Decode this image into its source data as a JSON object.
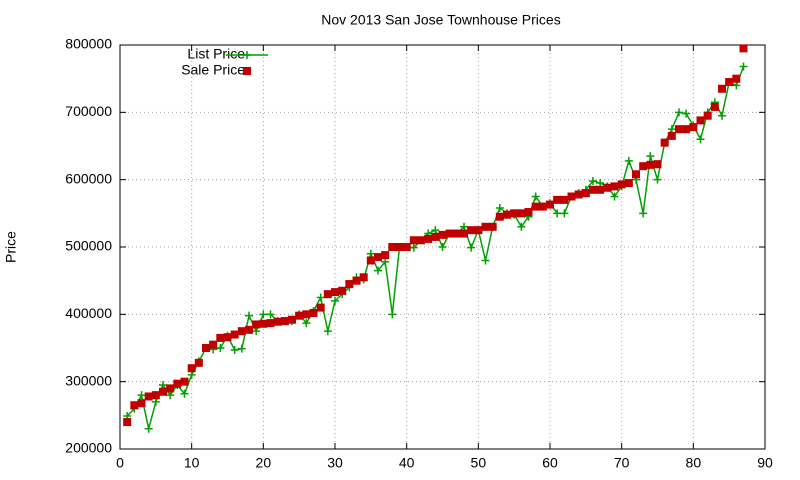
{
  "chart_data": {
    "type": "line",
    "title": "Nov 2013 San Jose Townhouse Prices",
    "y_label": "Price",
    "x": [
      1,
      2,
      3,
      4,
      5,
      6,
      7,
      8,
      9,
      10,
      11,
      12,
      13,
      14,
      15,
      16,
      17,
      18,
      19,
      20,
      21,
      22,
      23,
      24,
      25,
      26,
      27,
      28,
      29,
      30,
      31,
      32,
      33,
      34,
      35,
      36,
      37,
      38,
      39,
      40,
      41,
      42,
      43,
      44,
      45,
      46,
      47,
      48,
      49,
      50,
      51,
      52,
      53,
      54,
      55,
      56,
      57,
      58,
      59,
      60,
      61,
      62,
      63,
      64,
      65,
      66,
      67,
      68,
      69,
      70,
      71,
      72,
      73,
      74,
      75,
      76,
      77,
      78,
      79,
      80,
      81,
      82,
      83,
      84,
      85,
      86,
      87
    ],
    "series": [
      {
        "name": "List Price",
        "color": "#00a000",
        "style": "linespoints",
        "values": [
          249000,
          260000,
          280000,
          230000,
          270000,
          295000,
          280000,
          295000,
          282000,
          310000,
          330000,
          350000,
          348000,
          350000,
          368000,
          347000,
          349000,
          398000,
          375000,
          400000,
          400000,
          390000,
          390000,
          390000,
          400000,
          387000,
          405000,
          425000,
          375000,
          420000,
          430000,
          440000,
          455000,
          452000,
          490000,
          465000,
          478000,
          400000,
          500000,
          500000,
          499000,
          510000,
          520000,
          525000,
          500000,
          520000,
          520000,
          530000,
          499000,
          525000,
          480000,
          530000,
          558000,
          550000,
          548000,
          530000,
          545000,
          575000,
          560000,
          565000,
          550000,
          550000,
          575000,
          580000,
          585000,
          598000,
          595000,
          590000,
          575000,
          590000,
          628000,
          600000,
          550000,
          635000,
          600000,
          655000,
          675000,
          700000,
          698000,
          680000,
          660000,
          700000,
          715000,
          695000,
          745000,
          740000,
          768000
        ]
      },
      {
        "name": "Sale Price",
        "color": "#c00000",
        "style": "points",
        "values": [
          240000,
          265000,
          268000,
          278000,
          280000,
          285000,
          290000,
          297000,
          300000,
          320000,
          328000,
          350000,
          355000,
          365000,
          366000,
          370000,
          375000,
          377000,
          385000,
          386000,
          387000,
          389000,
          390000,
          392000,
          398000,
          400000,
          402000,
          410000,
          430000,
          433000,
          435000,
          445000,
          450000,
          455000,
          480000,
          485000,
          488000,
          500000,
          500000,
          500000,
          510000,
          510000,
          512000,
          515000,
          518000,
          520000,
          520000,
          520000,
          525000,
          525000,
          530000,
          530000,
          545000,
          548000,
          550000,
          550000,
          552000,
          560000,
          560000,
          563000,
          570000,
          570000,
          575000,
          578000,
          580000,
          585000,
          585000,
          588000,
          590000,
          593000,
          595000,
          608000,
          620000,
          622000,
          623000,
          655000,
          665000,
          675000,
          675000,
          678000,
          688000,
          695000,
          708000,
          735000,
          745000,
          750000,
          795000
        ]
      }
    ],
    "xlim": [
      0,
      90
    ],
    "xticks": [
      0,
      10,
      20,
      30,
      40,
      50,
      60,
      70,
      80,
      90
    ],
    "ylim": [
      200000,
      800000
    ],
    "yticks": [
      200000,
      300000,
      400000,
      500000,
      600000,
      700000,
      800000
    ],
    "grid": true,
    "legend": "top-left"
  }
}
